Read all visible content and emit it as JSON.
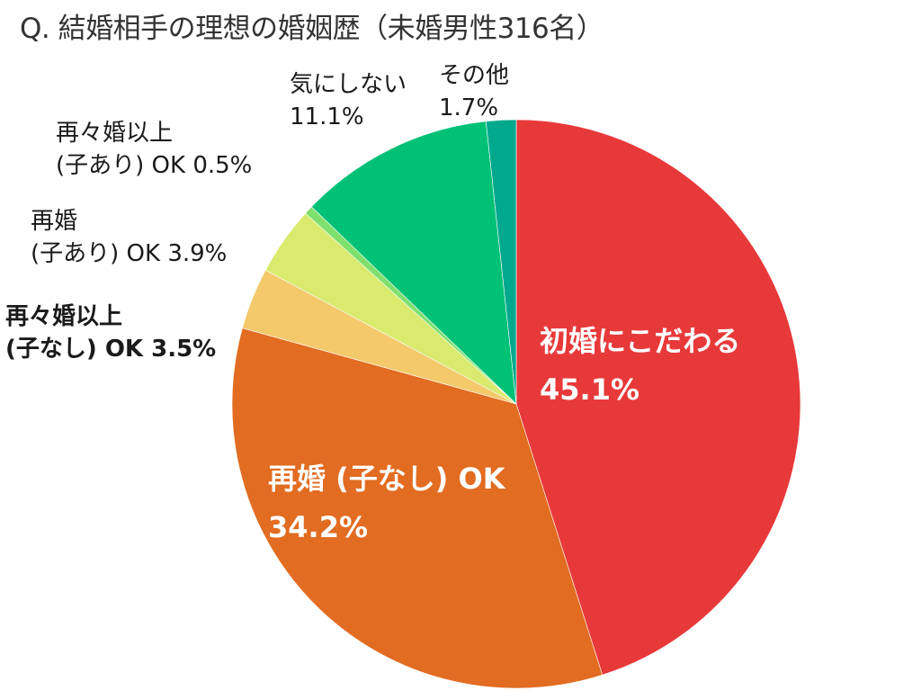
{
  "chart_data": {
    "type": "pie",
    "title": "Q. 結婚相手の理想の婚姻歴（未婚男性316名）",
    "start_angle": "12 o'clock, clockwise",
    "slices": [
      {
        "label": "初婚にこだわる",
        "value": 45.1,
        "color": "#e8393a"
      },
      {
        "label": "再婚 (子なし) OK",
        "value": 34.2,
        "color": "#e26c21"
      },
      {
        "label": "再々婚以上 (子なし) OK",
        "value": 3.5,
        "color": "#f3c96b"
      },
      {
        "label": "再婚 (子あり) OK",
        "value": 3.9,
        "color": "#d9ea6f"
      },
      {
        "label": "再々婚以上 (子あり) OK",
        "value": 0.5,
        "color": "#7fe06e"
      },
      {
        "label": "気にしない",
        "value": 11.1,
        "color": "#00c176"
      },
      {
        "label": "その他",
        "value": 1.7,
        "color": "#00a98d"
      }
    ]
  },
  "title": "Q. 結婚相手の理想の婚姻歴（未婚男性316名）",
  "labels": {
    "first_marriage": {
      "line1": "初婚にこだわる",
      "line2": "45.1%"
    },
    "remarriage_nokids": {
      "line1": "再婚 (子なし) OK",
      "line2": "34.2%"
    },
    "multi_remarriage_nokids": {
      "line1": "再々婚以上",
      "line2": "(子なし) OK  3.5%"
    },
    "remarriage_kids": {
      "line1": "再婚",
      "line2": "(子あり) OK  3.9%"
    },
    "multi_remarriage_kids": {
      "line1": "再々婚以上",
      "line2": "(子あり) OK  0.5%"
    },
    "dont_care": {
      "line1": "気にしない",
      "line2": "11.1%"
    },
    "other": {
      "line1": "その他",
      "line2": "1.7%"
    }
  }
}
